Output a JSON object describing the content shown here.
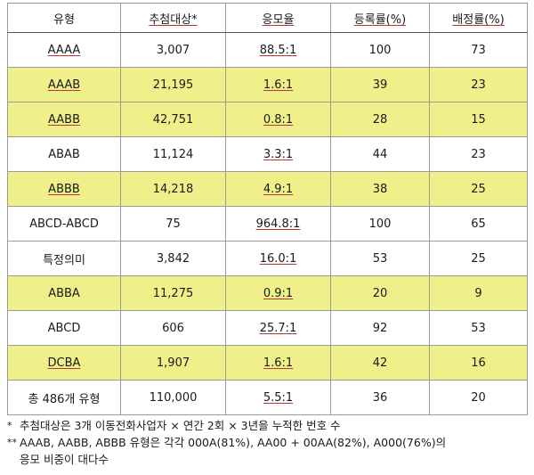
{
  "table": {
    "headers": [
      "유형",
      "추첨대상*",
      "응모율",
      "등록률(%)",
      "배정률(%)"
    ],
    "rows": [
      {
        "type": "AAAA",
        "targets": "3,007",
        "ratio": "88.5:1",
        "reg": "100",
        "assign": "73",
        "highlight": false
      },
      {
        "type": "AAAB",
        "targets": "21,195",
        "ratio": "1.6:1",
        "reg": "39",
        "assign": "23",
        "highlight": true
      },
      {
        "type": "AABB",
        "targets": "42,751",
        "ratio": "0.8:1",
        "reg": "28",
        "assign": "15",
        "highlight": true
      },
      {
        "type": "ABAB",
        "targets": "11,124",
        "ratio": "3.3:1",
        "reg": "44",
        "assign": "23",
        "highlight": false
      },
      {
        "type": "ABBB",
        "targets": "14,218",
        "ratio": "4.9:1",
        "reg": "38",
        "assign": "25",
        "highlight": true
      },
      {
        "type": "ABCD-ABCD",
        "targets": "75",
        "ratio": "964.8:1",
        "reg": "100",
        "assign": "65",
        "highlight": false
      },
      {
        "type": "특정의미",
        "targets": "3,842",
        "ratio": "16.0:1",
        "reg": "53",
        "assign": "25",
        "highlight": false
      },
      {
        "type": "ABBA",
        "targets": "11,275",
        "ratio": "0.9:1",
        "reg": "20",
        "assign": "9",
        "highlight": true
      },
      {
        "type": "ABCD",
        "targets": "606",
        "ratio": "25.7:1",
        "reg": "92",
        "assign": "53",
        "highlight": false
      },
      {
        "type": "DCBA",
        "targets": "1,907",
        "ratio": "1.6:1",
        "reg": "42",
        "assign": "16",
        "highlight": true
      }
    ],
    "total": {
      "type": "총 486개 유형",
      "targets": "110,000",
      "ratio": "5.5:1",
      "reg": "36",
      "assign": "20"
    }
  },
  "notes": {
    "note1_mark": "*",
    "note1": "추첨대상은 3개 이동전화사업자 × 연간 2회 × 3년을 누적한 번호 수",
    "note2_mark": "**",
    "note2_line1": "AAAB, AABB, ABBB 유형은 각각 000A(81%), AA00 + 00AA(82%), A000(76%)의",
    "note2_line2": "응모 비중이 대다수"
  }
}
